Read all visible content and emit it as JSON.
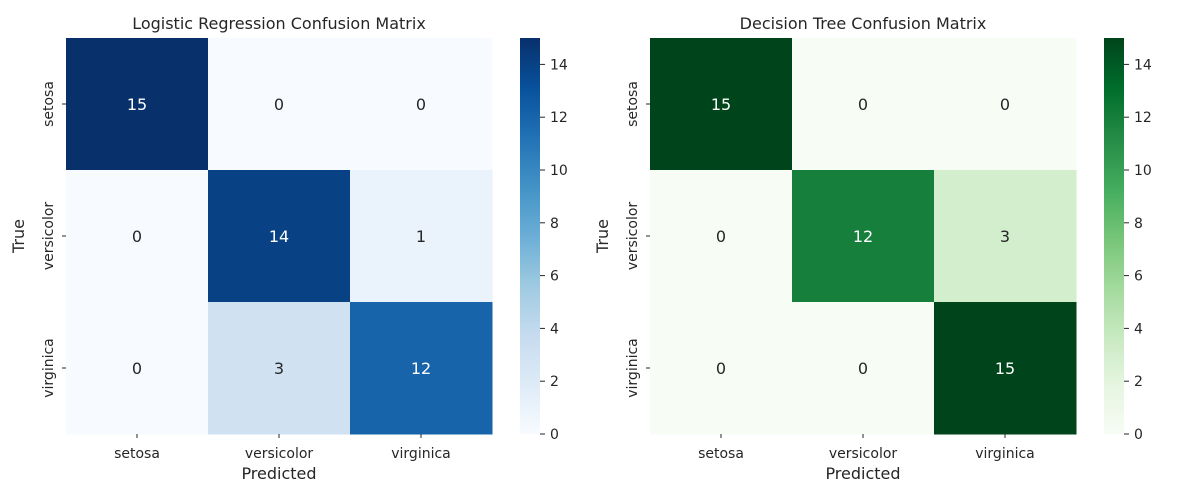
{
  "chart_data": [
    {
      "type": "heatmap",
      "title": "Logistic Regression Confusion Matrix",
      "xlabel": "Predicted",
      "ylabel": "True",
      "x_categories": [
        "setosa",
        "versicolor",
        "virginica"
      ],
      "y_categories": [
        "setosa",
        "versicolor",
        "virginica"
      ],
      "values": [
        [
          15,
          0,
          0
        ],
        [
          0,
          14,
          1
        ],
        [
          0,
          3,
          12
        ]
      ],
      "colormap": "Blues",
      "color_low": "#f7fbff",
      "color_high": "#08306b",
      "colorbar_range": [
        0,
        15
      ],
      "colorbar_ticks": [
        "0",
        "2",
        "4",
        "6",
        "8",
        "10",
        "12",
        "14"
      ]
    },
    {
      "type": "heatmap",
      "title": "Decision Tree Confusion Matrix",
      "xlabel": "Predicted",
      "ylabel": "True",
      "x_categories": [
        "setosa",
        "versicolor",
        "virginica"
      ],
      "y_categories": [
        "setosa",
        "versicolor",
        "virginica"
      ],
      "values": [
        [
          15,
          0,
          0
        ],
        [
          0,
          12,
          3
        ],
        [
          0,
          0,
          15
        ]
      ],
      "colormap": "Greens",
      "color_low": "#f7fcf5",
      "color_high": "#00441b",
      "colorbar_range": [
        0,
        15
      ],
      "colorbar_ticks": [
        "0",
        "2",
        "4",
        "6",
        "8",
        "10",
        "12",
        "14"
      ]
    }
  ]
}
